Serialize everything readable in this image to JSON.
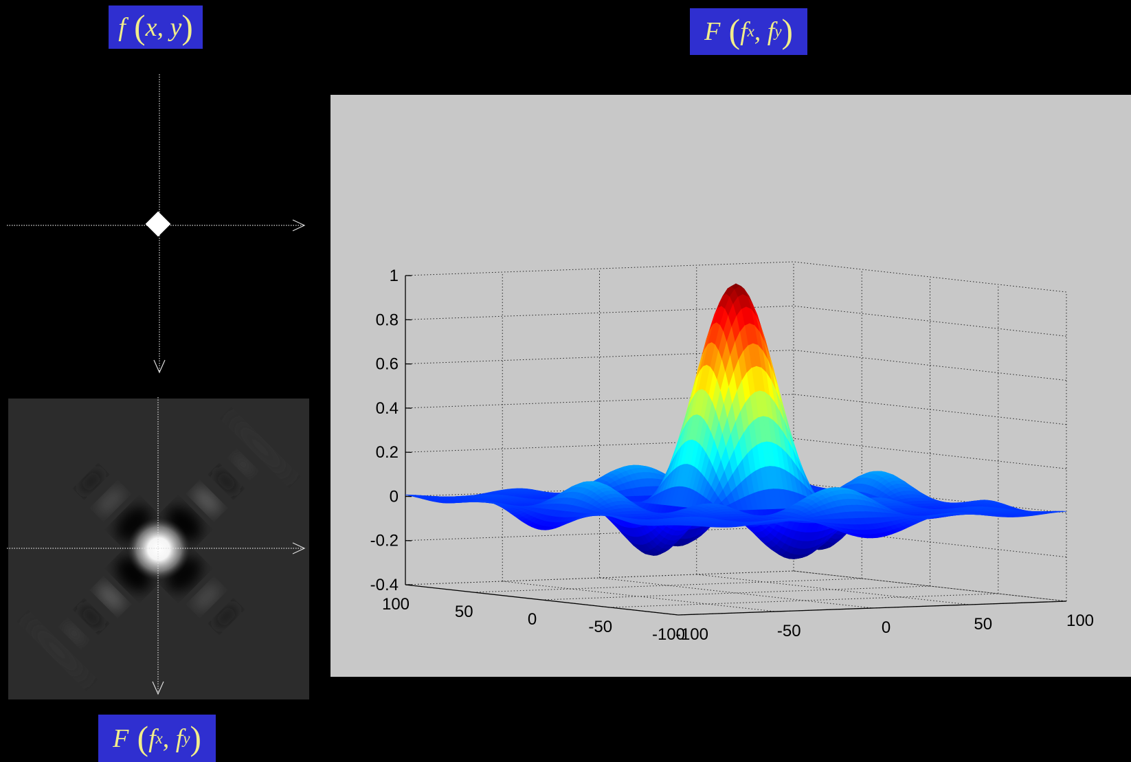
{
  "labels": {
    "spatial_function": {
      "f": "f",
      "args": "x, y"
    },
    "fourier_3d": {
      "F": "F",
      "f1": "f",
      "s1": "x",
      "f2": "f",
      "s2": "y"
    },
    "fourier_2d": {
      "F": "F",
      "f1": "f",
      "s1": "x",
      "f2": "f",
      "s2": "y"
    }
  },
  "chart_data": {
    "type": "surface",
    "title": "",
    "z_ticks": [
      "1",
      "0.8",
      "0.6",
      "0.4",
      "0.2",
      "0",
      "-0.2",
      "-0.4"
    ],
    "zlim": [
      -0.4,
      1
    ],
    "x_ticks": [
      "100",
      "50",
      "0",
      "-50",
      "-100"
    ],
    "y_ticks": [
      "-100",
      "-50",
      "0",
      "50",
      "100"
    ],
    "xlim": [
      -100,
      100
    ],
    "ylim": [
      -100,
      100
    ],
    "grid": true,
    "peak_value": 1,
    "colormap": "jet",
    "background": "#c8c8c8"
  }
}
